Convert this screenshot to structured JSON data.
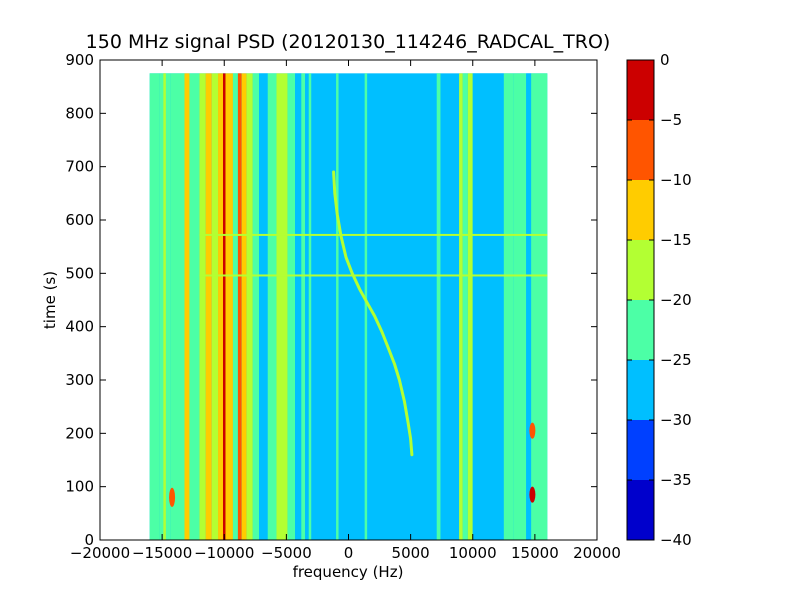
{
  "chart_data": {
    "type": "heatmap",
    "title": "150 MHz signal PSD (20120130_114246_RADCAL_TRO)",
    "xlabel": "frequency (Hz)",
    "ylabel": "time (s)",
    "xlim": [
      -20000,
      20000
    ],
    "ylim": [
      0,
      900
    ],
    "xticks": [
      -20000,
      -15000,
      -10000,
      -5000,
      0,
      5000,
      10000,
      15000,
      20000
    ],
    "yticks": [
      0,
      100,
      200,
      300,
      400,
      500,
      600,
      700,
      800,
      900
    ],
    "grid": false,
    "data_extent": {
      "x": [
        -16000,
        16000
      ],
      "y": [
        0,
        875
      ]
    },
    "background_level": -27.5,
    "colorbar": {
      "levels": [
        -40,
        -35,
        -30,
        -25,
        -20,
        -15,
        -10,
        -5,
        0
      ],
      "ticks": [
        "0",
        "−5",
        "−10",
        "−15",
        "−20",
        "−25",
        "−30",
        "−35",
        "−40"
      ],
      "colors": [
        "#0000cc",
        "#0040ff",
        "#00bfff",
        "#4cffa6",
        "#b3ff33",
        "#ffcc00",
        "#ff5500",
        "#cc0000"
      ]
    },
    "vertical_bands": [
      {
        "x0": -16000,
        "x1": -15200,
        "level": -22.5
      },
      {
        "x0": -15200,
        "x1": -14300,
        "level": -22.5
      },
      {
        "x0": -14900,
        "x1": -14700,
        "level": -17.5
      },
      {
        "x0": -14300,
        "x1": -13200,
        "level": -22.5
      },
      {
        "x0": -13200,
        "x1": -12800,
        "level": -12.5
      },
      {
        "x0": -12800,
        "x1": -12000,
        "level": -22.5
      },
      {
        "x0": -12000,
        "x1": -11500,
        "level": -17.5
      },
      {
        "x0": -11500,
        "x1": -11000,
        "level": -12.5
      },
      {
        "x0": -11000,
        "x1": -10500,
        "level": -17.5
      },
      {
        "x0": -10500,
        "x1": -10100,
        "level": -12.5
      },
      {
        "x0": -10100,
        "x1": -9900,
        "level": -2.5
      },
      {
        "x0": -9900,
        "x1": -9300,
        "level": -12.5
      },
      {
        "x0": -9300,
        "x1": -8900,
        "level": -22.5
      },
      {
        "x0": -8900,
        "x1": -8600,
        "level": -7.5
      },
      {
        "x0": -8600,
        "x1": -8200,
        "level": -12.5
      },
      {
        "x0": -8200,
        "x1": -7700,
        "level": -17.5
      },
      {
        "x0": -7700,
        "x1": -7200,
        "level": -22.5
      },
      {
        "x0": -7200,
        "x1": -6500,
        "level": -27.5
      },
      {
        "x0": -6500,
        "x1": -5800,
        "level": -22.5
      },
      {
        "x0": -5800,
        "x1": -4900,
        "level": -17.5
      },
      {
        "x0": -4900,
        "x1": -4300,
        "level": -22.5
      },
      {
        "x0": -4300,
        "x1": -3800,
        "level": -27.5
      },
      {
        "x0": -3800,
        "x1": -3500,
        "level": -22.5
      },
      {
        "x0": -3200,
        "x1": -3000,
        "level": -22.5
      },
      {
        "x0": -1000,
        "x1": -800,
        "level": -22.5
      },
      {
        "x0": 1300,
        "x1": 1500,
        "level": -22.5
      },
      {
        "x0": 7100,
        "x1": 7400,
        "level": -22.5
      },
      {
        "x0": 8900,
        "x1": 9200,
        "level": -17.5
      },
      {
        "x0": 9200,
        "x1": 9600,
        "level": -22.5
      },
      {
        "x0": 9600,
        "x1": 10000,
        "level": -17.5
      },
      {
        "x0": 10000,
        "x1": 12500,
        "level": -27.5
      },
      {
        "x0": 12500,
        "x1": 13300,
        "level": -22.5
      },
      {
        "x0": 13300,
        "x1": 14300,
        "level": -22.5
      },
      {
        "x0": 14300,
        "x1": 14700,
        "level": -27.5
      },
      {
        "x0": 14700,
        "x1": 16000,
        "level": -22.5
      }
    ],
    "horizontal_lines": [
      {
        "y": 572,
        "x0": -12000,
        "x1": 16000,
        "level": -17.5
      },
      {
        "y": 496,
        "x0": -12000,
        "x1": 16000,
        "level": -17.5
      }
    ],
    "hot_spots": [
      {
        "x": -14200,
        "y": 80,
        "ry": 18,
        "level": -7.5
      },
      {
        "x": 14800,
        "y": 205,
        "ry": 15,
        "level": -7.5
      },
      {
        "x": 14800,
        "y": 85,
        "ry": 15,
        "level": -2.5
      }
    ],
    "sweep_trace": {
      "level": -17.5,
      "points": [
        [
          -1200,
          690
        ],
        [
          -1100,
          650
        ],
        [
          -900,
          610
        ],
        [
          -600,
          570
        ],
        [
          -200,
          530
        ],
        [
          300,
          500
        ],
        [
          900,
          470
        ],
        [
          1500,
          445
        ],
        [
          2100,
          420
        ],
        [
          2700,
          390
        ],
        [
          3200,
          360
        ],
        [
          3700,
          330
        ],
        [
          4100,
          300
        ],
        [
          4500,
          260
        ],
        [
          4800,
          220
        ],
        [
          5000,
          190
        ],
        [
          5100,
          160
        ]
      ]
    }
  }
}
